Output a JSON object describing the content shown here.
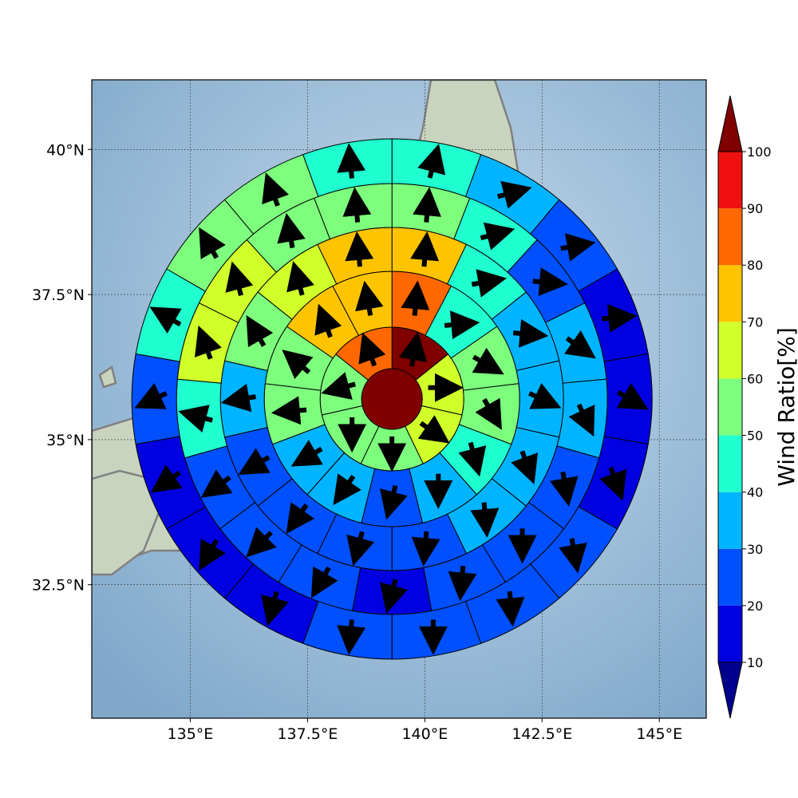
{
  "map": {
    "lon_range": [
      132.9,
      146.0
    ],
    "lat_range": [
      30.2,
      41.2
    ],
    "gridlines": true,
    "center": [
      139.3,
      35.7
    ],
    "lon_ticks": [
      {
        "value": 135,
        "label": "135°E"
      },
      {
        "value": 137.5,
        "label": "137.5°E"
      },
      {
        "value": 140,
        "label": "140°E"
      },
      {
        "value": 142.5,
        "label": "142.5°E"
      },
      {
        "value": 145,
        "label": "145°E"
      }
    ],
    "lat_ticks": [
      {
        "value": 40,
        "label": "40°N"
      },
      {
        "value": 37.5,
        "label": "37.5°N"
      },
      {
        "value": 35,
        "label": "35°N"
      },
      {
        "value": 32.5,
        "label": "32.5°N"
      }
    ],
    "colors": {
      "coastline": "#808080",
      "sea_dark": "#7fa8ca",
      "sea_light": "#c9dcec",
      "land": "#c9d4bf"
    }
  },
  "colorbar": {
    "title": "Wind Ratio[%]",
    "ticks": [
      "10",
      "20",
      "30",
      "40",
      "50",
      "60",
      "70",
      "80",
      "90",
      "100"
    ],
    "under_color": "#00008f",
    "over_color": "#800000",
    "colors": [
      "#0000e0",
      "#0050ff",
      "#00b4ff",
      "#20ffd0",
      "#7dff7d",
      "#d0ff2a",
      "#ffc400",
      "#ff6800",
      "#f01010"
    ]
  },
  "wind_rings": {
    "center_value": 100,
    "units": "%",
    "rings": [
      {
        "sector_start_deg": 0,
        "values": [
          100,
          65,
          60,
          55,
          55,
          55,
          85
        ]
      },
      {
        "sector_start_deg": 0,
        "values": [
          85,
          45,
          50,
          50,
          45,
          35,
          25,
          30,
          35,
          50,
          55,
          70,
          75
        ]
      },
      {
        "sector_start_deg": 0,
        "values": [
          75,
          45,
          35,
          30,
          35,
          30,
          25,
          25,
          20,
          20,
          30,
          55,
          60,
          70
        ]
      },
      {
        "sector_start_deg": 0,
        "values": [
          55,
          45,
          25,
          30,
          30,
          25,
          25,
          20,
          15,
          20,
          20,
          25,
          45,
          60,
          65,
          55,
          50
        ]
      },
      {
        "sector_start_deg": 0,
        "values": [
          45,
          30,
          20,
          15,
          10,
          15,
          20,
          20,
          20,
          20,
          15,
          10,
          10,
          20,
          45,
          55,
          55,
          45
        ]
      }
    ],
    "wind_directions_deg": [
      [
        10,
        90,
        125,
        180,
        180,
        255,
        340
      ],
      [
        5,
        85,
        120,
        150,
        165,
        180,
        195,
        215,
        240,
        265,
        310,
        340,
        350
      ],
      [
        5,
        80,
        95,
        115,
        160,
        175,
        185,
        195,
        215,
        240,
        260,
        330,
        345,
        355
      ],
      [
        5,
        75,
        95,
        125,
        155,
        170,
        180,
        185,
        195,
        210,
        225,
        235,
        285,
        340,
        345,
        350,
        355
      ],
      [
        15,
        75,
        80,
        85,
        120,
        160,
        170,
        175,
        180,
        185,
        195,
        210,
        235,
        245,
        300,
        330,
        340,
        355
      ]
    ]
  }
}
